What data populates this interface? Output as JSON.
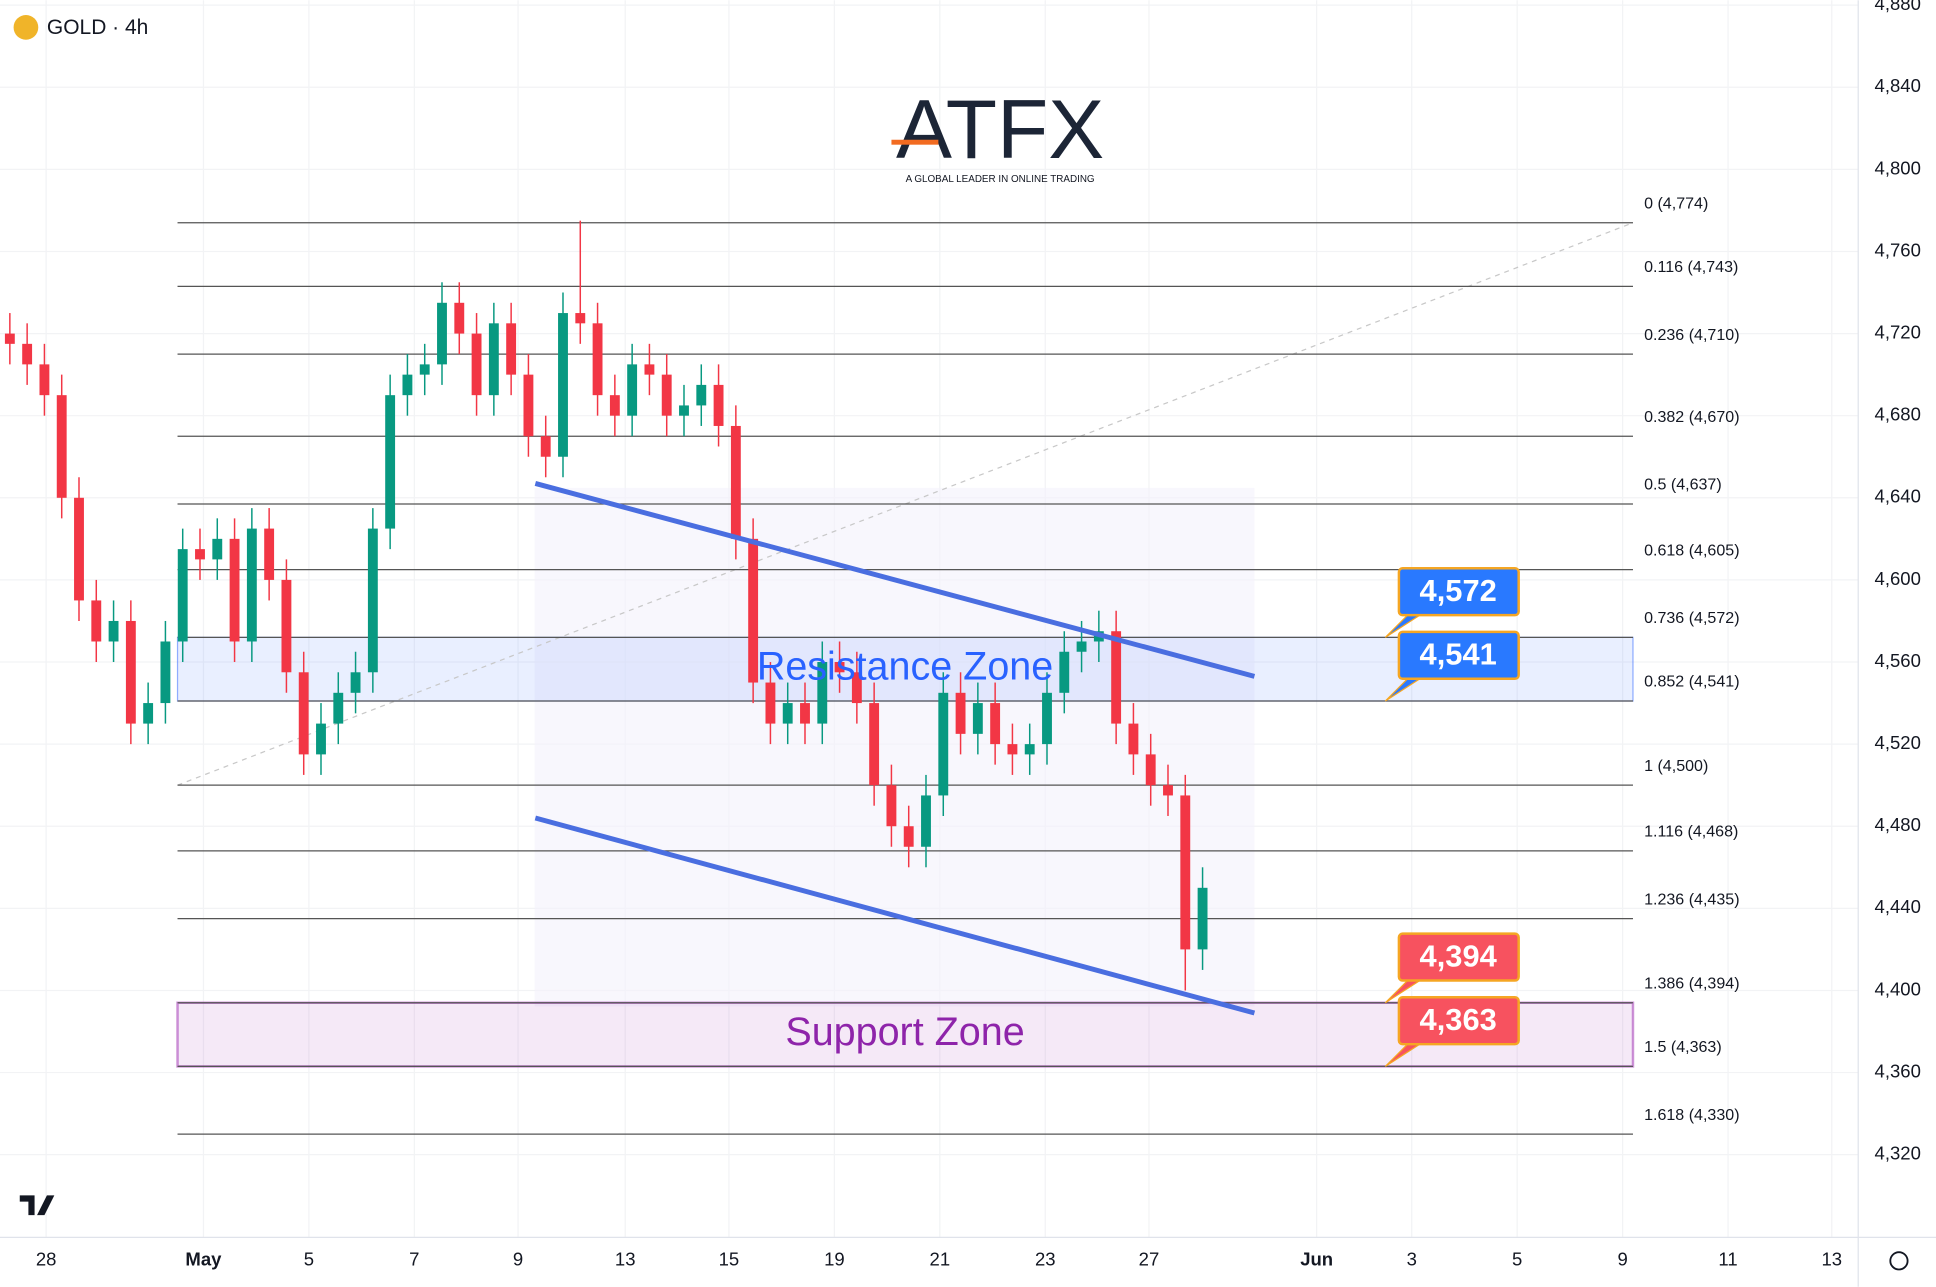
{
  "header": {
    "symbol": "GOLD · 4h"
  },
  "logo": {
    "name": "ATFX",
    "tagline": "A GLOBAL LEADER IN ONLINE TRADING"
  },
  "chart_data": {
    "type": "candlestick",
    "xlim": [
      -0.57,
      106.93
    ],
    "ylim": [
      4279.7,
      4882.4
    ],
    "grid": true,
    "xticks": [
      {
        "value": 2.1,
        "label": "28"
      },
      {
        "value": 11.2,
        "label": "May"
      },
      {
        "value": 17.3,
        "label": "5"
      },
      {
        "value": 23.4,
        "label": "7"
      },
      {
        "value": 29.4,
        "label": "9"
      },
      {
        "value": 35.6,
        "label": "13"
      },
      {
        "value": 41.6,
        "label": "15"
      },
      {
        "value": 47.7,
        "label": "19"
      },
      {
        "value": 53.8,
        "label": "21"
      },
      {
        "value": 59.9,
        "label": "23"
      },
      {
        "value": 65.9,
        "label": "27"
      },
      {
        "value": 75.6,
        "label": "Jun"
      },
      {
        "value": 81.1,
        "label": "3"
      },
      {
        "value": 87.2,
        "label": "5"
      },
      {
        "value": 93.3,
        "label": "9"
      },
      {
        "value": 99.4,
        "label": "11"
      },
      {
        "value": 105.4,
        "label": "13"
      }
    ],
    "yticks": [
      {
        "value": 4320,
        "label": "4,320"
      },
      {
        "value": 4360,
        "label": "4,360"
      },
      {
        "value": 4400,
        "label": "4,400"
      },
      {
        "value": 4440,
        "label": "4,440"
      },
      {
        "value": 4480,
        "label": "4,480"
      },
      {
        "value": 4520,
        "label": "4,520"
      },
      {
        "value": 4560,
        "label": "4,560"
      },
      {
        "value": 4600,
        "label": "4,600"
      },
      {
        "value": 4640,
        "label": "4,640"
      },
      {
        "value": 4680,
        "label": "4,680"
      },
      {
        "value": 4720,
        "label": "4,720"
      },
      {
        "value": 4760,
        "label": "4,760"
      },
      {
        "value": 4800,
        "label": "4,800"
      },
      {
        "value": 4840,
        "label": "4,840"
      },
      {
        "value": 4880,
        "label": "4,880"
      }
    ],
    "up_color": "#089981",
    "down_color": "#f23645",
    "series": [
      {
        "x": [
          0,
          1,
          2,
          3,
          4,
          5,
          6,
          7,
          8,
          9,
          10,
          11,
          12,
          13,
          14,
          15,
          16,
          17,
          18,
          19,
          20,
          21,
          22,
          23,
          24,
          25,
          26,
          27,
          28,
          29,
          30,
          31,
          32,
          33,
          34,
          35,
          36,
          37,
          38,
          39,
          40,
          41,
          42,
          43,
          44,
          45,
          46,
          47,
          48,
          49,
          50,
          51,
          52,
          53,
          54,
          55,
          56,
          57,
          58,
          59,
          60,
          61,
          62,
          63,
          64,
          65,
          66,
          67,
          68,
          69
        ],
        "open": [
          4720,
          4715,
          4705,
          4690,
          4640,
          4590,
          4570,
          4580,
          4530,
          4540,
          4570,
          4615,
          4610,
          4620,
          4570,
          4625,
          4600,
          4555,
          4515,
          4530,
          4545,
          4555,
          4625,
          4690,
          4700,
          4705,
          4735,
          4720,
          4690,
          4725,
          4700,
          4670,
          4660,
          4730,
          4725,
          4690,
          4680,
          4705,
          4700,
          4680,
          4685,
          4695,
          4675,
          4620,
          4550,
          4530,
          4540,
          4530,
          4560,
          4555,
          4540,
          4500,
          4480,
          4470,
          4495,
          4545,
          4525,
          4540,
          4520,
          4515,
          4520,
          4545,
          4565,
          4570,
          4575,
          4530,
          4515,
          4500,
          4495,
          4420
        ],
        "high": [
          4730,
          4725,
          4715,
          4700,
          4650,
          4600,
          4590,
          4590,
          4550,
          4580,
          4625,
          4625,
          4630,
          4630,
          4635,
          4635,
          4610,
          4565,
          4540,
          4555,
          4565,
          4635,
          4700,
          4710,
          4715,
          4745,
          4745,
          4730,
          4735,
          4735,
          4710,
          4680,
          4740,
          4775,
          4735,
          4700,
          4715,
          4715,
          4710,
          4695,
          4705,
          4705,
          4685,
          4630,
          4560,
          4550,
          4550,
          4570,
          4570,
          4565,
          4550,
          4510,
          4490,
          4505,
          4555,
          4555,
          4550,
          4550,
          4530,
          4530,
          4555,
          4575,
          4580,
          4585,
          4585,
          4540,
          4525,
          4510,
          4505,
          4460
        ],
        "low": [
          4705,
          4695,
          4680,
          4630,
          4580,
          4560,
          4560,
          4520,
          4520,
          4530,
          4560,
          4600,
          4600,
          4560,
          4560,
          4590,
          4545,
          4505,
          4505,
          4520,
          4535,
          4545,
          4615,
          4680,
          4690,
          4695,
          4710,
          4680,
          4680,
          4690,
          4660,
          4650,
          4650,
          4715,
          4680,
          4670,
          4670,
          4690,
          4670,
          4670,
          4675,
          4665,
          4610,
          4540,
          4520,
          4520,
          4520,
          4520,
          4545,
          4530,
          4490,
          4470,
          4460,
          4460,
          4485,
          4515,
          4515,
          4510,
          4505,
          4505,
          4510,
          4535,
          4555,
          4560,
          4520,
          4505,
          4490,
          4485,
          4400,
          4410
        ],
        "close": [
          4715,
          4705,
          4690,
          4640,
          4590,
          4570,
          4580,
          4530,
          4540,
          4570,
          4615,
          4610,
          4620,
          4570,
          4625,
          4600,
          4555,
          4515,
          4530,
          4545,
          4555,
          4625,
          4690,
          4700,
          4705,
          4735,
          4720,
          4690,
          4725,
          4700,
          4670,
          4660,
          4730,
          4725,
          4690,
          4680,
          4705,
          4700,
          4680,
          4685,
          4695,
          4675,
          4620,
          4550,
          4530,
          4540,
          4530,
          4560,
          4555,
          4540,
          4500,
          4480,
          4470,
          4495,
          4545,
          4525,
          4540,
          4520,
          4515,
          4520,
          4545,
          4565,
          4570,
          4575,
          4530,
          4515,
          4500,
          4495,
          4420,
          4450
        ]
      }
    ],
    "fib_x": [
      9.7,
      93.9
    ],
    "fib_levels": [
      {
        "value": 4774,
        "label": "0 (4,774)"
      },
      {
        "value": 4743,
        "label": "0.116 (4,743)"
      },
      {
        "value": 4710,
        "label": "0.236 (4,710)"
      },
      {
        "value": 4670,
        "label": "0.382 (4,670)"
      },
      {
        "value": 4637,
        "label": "0.5 (4,637)"
      },
      {
        "value": 4605,
        "label": "0.618 (4,605)"
      },
      {
        "value": 4572,
        "label": "0.736 (4,572)"
      },
      {
        "value": 4541,
        "label": "0.852 (4,541)"
      },
      {
        "value": 4500,
        "label": "1 (4,500)"
      },
      {
        "value": 4468,
        "label": "1.116 (4,468)"
      },
      {
        "value": 4435,
        "label": "1.236 (4,435)"
      },
      {
        "value": 4394,
        "label": "1.386 (4,394)"
      },
      {
        "value": 4363,
        "label": "1.5 (4,363)"
      },
      {
        "value": 4330,
        "label": "1.618 (4,330)"
      }
    ],
    "fib_anchor": {
      "x": [
        9.7,
        93.9
      ],
      "y": [
        4500,
        4774
      ]
    },
    "zones": [
      {
        "name": "Resistance Zone",
        "low": 4541,
        "high": 4572,
        "color": "#2962ff"
      },
      {
        "name": "Support Zone",
        "low": 4363,
        "high": 4394,
        "color": "#9c27b0"
      }
    ],
    "trendlines": [
      {
        "x": [
          30.4,
          72
        ],
        "y": [
          4647,
          4553
        ],
        "color": "#4a6ee0"
      },
      {
        "x": [
          30.4,
          72
        ],
        "y": [
          4484,
          4389
        ],
        "color": "#4a6ee0"
      }
    ],
    "price_tags": [
      {
        "value": 4572,
        "label": "4,572",
        "color": "#2979ff"
      },
      {
        "value": 4541,
        "label": "4,541",
        "color": "#2979ff"
      },
      {
        "value": 4394,
        "label": "4,394",
        "color": "#f7525f"
      },
      {
        "value": 4363,
        "label": "4,363",
        "color": "#f7525f"
      }
    ]
  }
}
